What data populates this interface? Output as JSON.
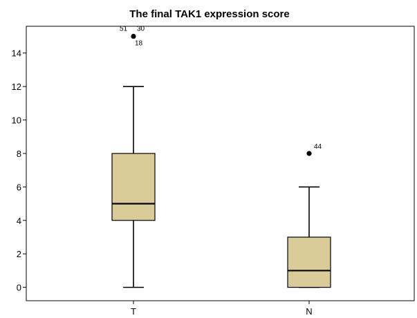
{
  "chart_data": {
    "type": "boxplot",
    "title": "The final TAK1 expression score",
    "xlabel": "",
    "ylabel": "",
    "ylim": [
      -0.8,
      15.6
    ],
    "yticks": [
      0,
      2,
      4,
      6,
      8,
      10,
      12,
      14
    ],
    "grid": false,
    "box_color": "#d9cc98",
    "categories": [
      "T",
      "N"
    ],
    "boxes": [
      {
        "category": "T",
        "whisker_low": 0,
        "q1": 4,
        "median": 5,
        "q3": 8,
        "whisker_high": 12,
        "outliers": [
          {
            "value": 15,
            "labels": [
              "51",
              "30",
              "18"
            ]
          }
        ]
      },
      {
        "category": "N",
        "whisker_low": 0,
        "q1": 0,
        "median": 1,
        "q3": 3,
        "whisker_high": 6,
        "outliers": [
          {
            "value": 8,
            "labels": [
              "44"
            ]
          }
        ]
      }
    ]
  }
}
